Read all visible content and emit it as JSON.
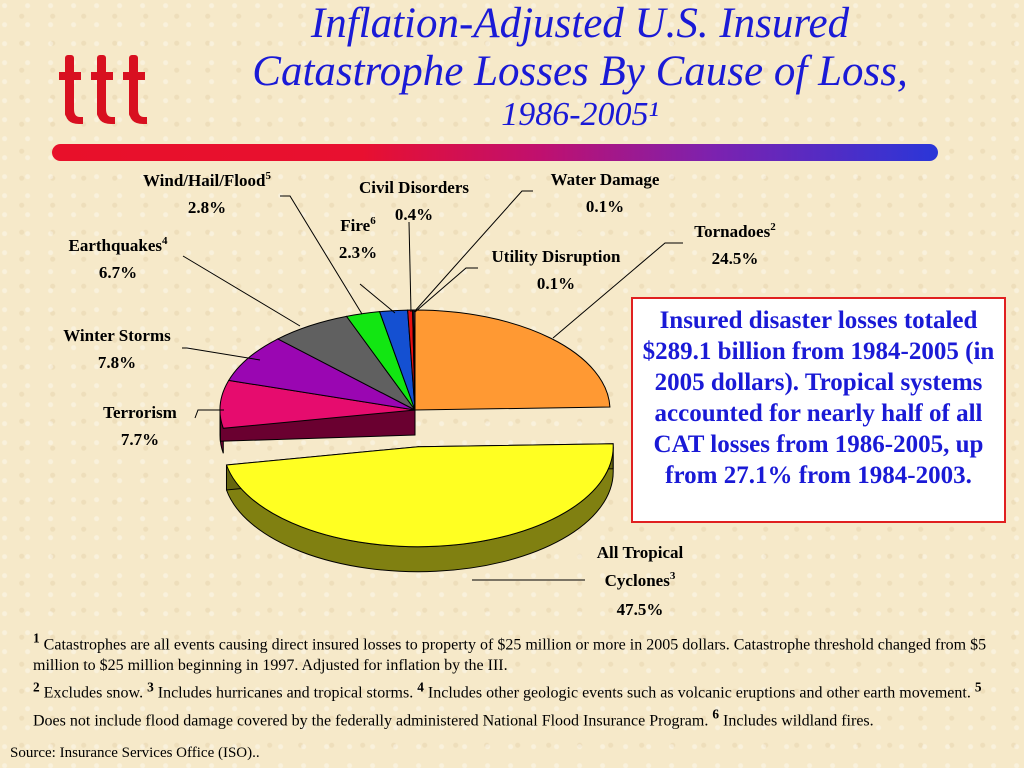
{
  "title": {
    "line1": "Inflation-Adjusted U.S. Insured",
    "line2": "Catastrophe Losses By Cause of Loss,",
    "line3": "1986-2005¹"
  },
  "logo": {
    "icon": "iii-logo",
    "text": "iii",
    "color": "#d81020"
  },
  "colors": {
    "title": "#1a1ad6",
    "callout_border": "#e02020"
  },
  "chart_data": {
    "type": "pie",
    "style": "3d-exploded",
    "unit": "%",
    "slices": [
      {
        "label": "Tornadoes",
        "sup": "2",
        "value": 24.5,
        "display": "24.5%",
        "color": "#ff9933"
      },
      {
        "label": "All Tropical Cyclones",
        "sup": "3",
        "value": 47.5,
        "display": "47.5%",
        "color": "#ffff22"
      },
      {
        "label": "Terrorism",
        "sup": "",
        "value": 7.7,
        "display": "7.7%",
        "color": "#e60c6e"
      },
      {
        "label": "Winter Storms",
        "sup": "",
        "value": 7.8,
        "display": "7.8%",
        "color": "#9a06b2"
      },
      {
        "label": "Earthquakes",
        "sup": "4",
        "value": 6.7,
        "display": "6.7%",
        "color": "#606060"
      },
      {
        "label": "Wind/Hail/Flood",
        "sup": "5",
        "value": 2.8,
        "display": "2.8%",
        "color": "#12e612"
      },
      {
        "label": "Fire",
        "sup": "6",
        "value": 2.3,
        "display": "2.3%",
        "color": "#1450d2"
      },
      {
        "label": "Civil Disorders",
        "sup": "",
        "value": 0.4,
        "display": "0.4%",
        "color": "#e81010"
      },
      {
        "label": "Water Damage",
        "sup": "",
        "value": 0.1,
        "display": "0.1%",
        "color": "#22a0e0"
      },
      {
        "label": "Utility Disruption",
        "sup": "",
        "value": 0.1,
        "display": "0.1%",
        "color": "#ff66cc"
      }
    ]
  },
  "callout": {
    "text": "Insured disaster losses totaled $289.1 billion from 1984-2005 (in 2005 dollars). Tropical systems accounted for nearly half of all CAT losses from 1986-2005, up from 27.1% from 1984-2003."
  },
  "footnotes": {
    "n1": "1",
    "t1": " Catastrophes are all events causing direct insured losses to property of $25 million or more in 2005 dollars. Catastrophe threshold changed from $5 million to $25 million beginning in 1997. Adjusted for inflation by the III.",
    "n2": "2",
    "t2": " Excludes snow. ",
    "n3": "3",
    "t3": " Includes hurricanes and tropical storms. ",
    "n4": "4",
    "t4": " Includes other geologic events such as volcanic eruptions and other earth movement. ",
    "n5": "5",
    "t5": " Does not include flood damage covered by the federally administered National Flood Insurance Program. ",
    "n6": "6",
    "t6": " Includes wildland fires."
  },
  "source": "Source: Insurance Services Office (ISO).."
}
